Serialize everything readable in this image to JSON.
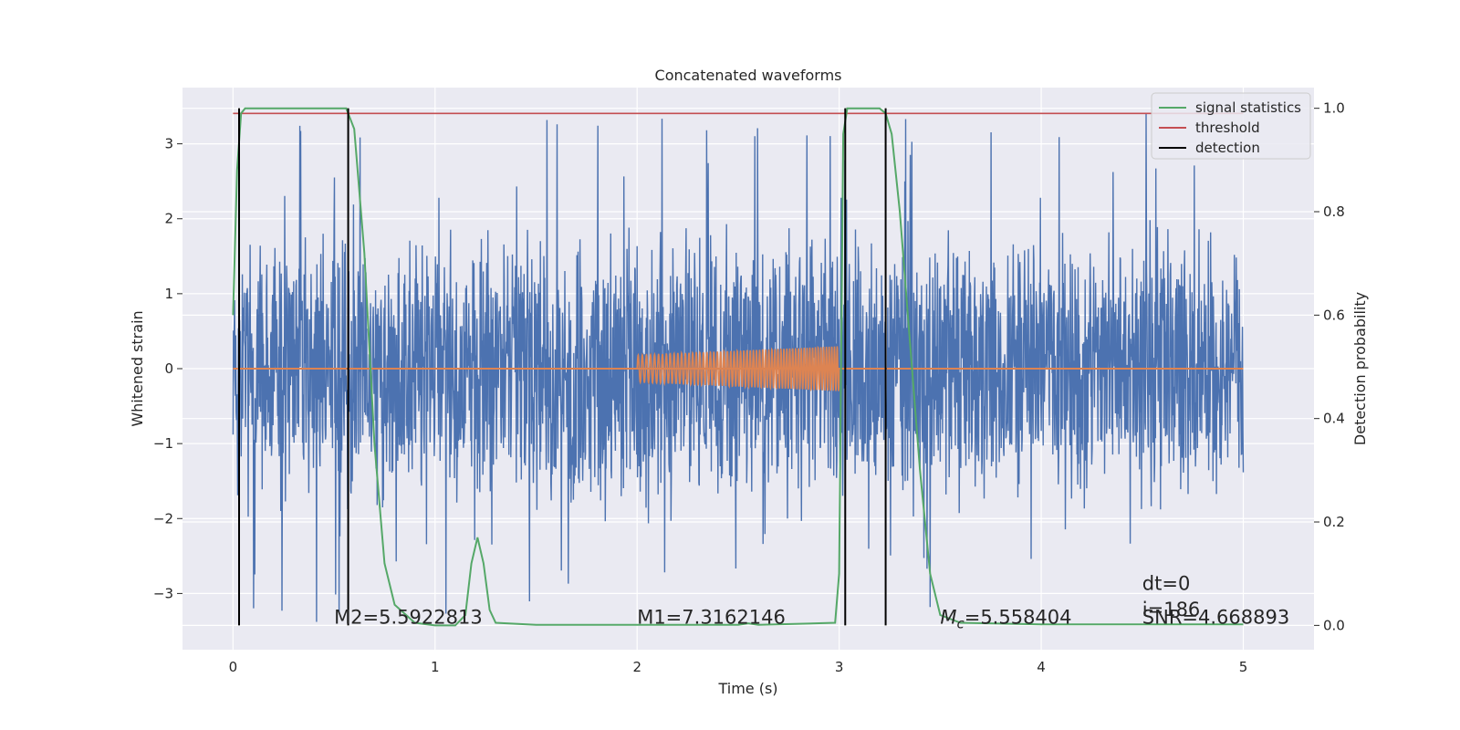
{
  "chart_data": {
    "type": "line",
    "title": "Concatenated waveforms",
    "xlabel": "Time (s)",
    "ylabel": "Whitened strain",
    "ylabel_right": "Detection probability",
    "xlim": [
      -0.25,
      5.35
    ],
    "ylim": [
      -3.75,
      3.75
    ],
    "ylim_right": [
      -0.047,
      1.04
    ],
    "x_ticks": [
      0,
      1,
      2,
      3,
      4,
      5
    ],
    "y_ticks": [
      -3,
      -2,
      -1,
      0,
      1,
      2,
      3
    ],
    "y_ticks_right": [
      0.0,
      0.2,
      0.4,
      0.6,
      0.8,
      1.0
    ],
    "grid": true,
    "legend_position": "top-right",
    "colors": {
      "strain": "#4c72b0",
      "injected": "#dd8452",
      "statistics": "#55a868",
      "threshold": "#c44e52",
      "detection": "#000000",
      "background": "#eaeaf2"
    },
    "series": [
      {
        "name": "signal statistics",
        "axis": "right",
        "x": [
          0.0,
          0.02,
          0.04,
          0.06,
          0.1,
          0.5,
          0.56,
          0.6,
          0.65,
          0.7,
          0.75,
          0.8,
          0.9,
          1.0,
          1.1,
          1.15,
          1.18,
          1.21,
          1.24,
          1.27,
          1.3,
          1.5,
          2.0,
          2.5,
          2.55,
          2.6,
          2.98,
          3.0,
          3.02,
          3.04,
          3.1,
          3.2,
          3.23,
          3.26,
          3.3,
          3.35,
          3.4,
          3.45,
          3.5,
          3.6,
          4.0,
          5.0
        ],
        "values": [
          0.6,
          0.88,
          0.99,
          1.0,
          1.0,
          1.0,
          1.0,
          0.96,
          0.72,
          0.35,
          0.12,
          0.04,
          0.005,
          0.0,
          0.0,
          0.02,
          0.12,
          0.17,
          0.12,
          0.03,
          0.005,
          0.001,
          0.001,
          0.001,
          0.004,
          0.001,
          0.005,
          0.1,
          0.95,
          1.0,
          1.0,
          1.0,
          0.99,
          0.95,
          0.8,
          0.55,
          0.3,
          0.1,
          0.02,
          0.005,
          0.002,
          0.002
        ]
      },
      {
        "name": "threshold",
        "axis": "right",
        "x": [
          0,
          5
        ],
        "values": [
          0.99,
          0.99
        ]
      },
      {
        "name": "detection",
        "axis": "left",
        "x": [
          0.03,
          0.57,
          3.03,
          3.23
        ]
      },
      {
        "name": "",
        "axis": "left",
        "description_only": false,
        "x_range": [
          0,
          5
        ],
        "amplitude_typical": 1.8,
        "amplitude_max": 3.4
      },
      {
        "name": "",
        "axis": "left",
        "x_range": [
          2.0,
          3.0
        ],
        "amplitude_start": 0.18,
        "amplitude_end": 0.3
      }
    ],
    "annotations": [
      {
        "id": "m2",
        "text": "M2=5.5922813",
        "x": 0.5,
        "y": -3.4
      },
      {
        "id": "m1",
        "text": "M1=7.3162146",
        "x": 2.0,
        "y": -3.4
      },
      {
        "id": "mc",
        "text_prefix": "M",
        "text_sub": "c",
        "text_suffix": "=5.558404",
        "x": 3.5,
        "y": -3.4
      },
      {
        "id": "dt",
        "text": "dt=0",
        "x": 4.5,
        "y": -2.95
      },
      {
        "id": "i",
        "text": "i=186",
        "x": 4.5,
        "y": -3.3
      },
      {
        "id": "snr",
        "text": "SNR=4.668893",
        "x": 4.5,
        "y": -3.4
      }
    ],
    "legend": [
      "signal statistics",
      "threshold",
      "detection"
    ]
  }
}
